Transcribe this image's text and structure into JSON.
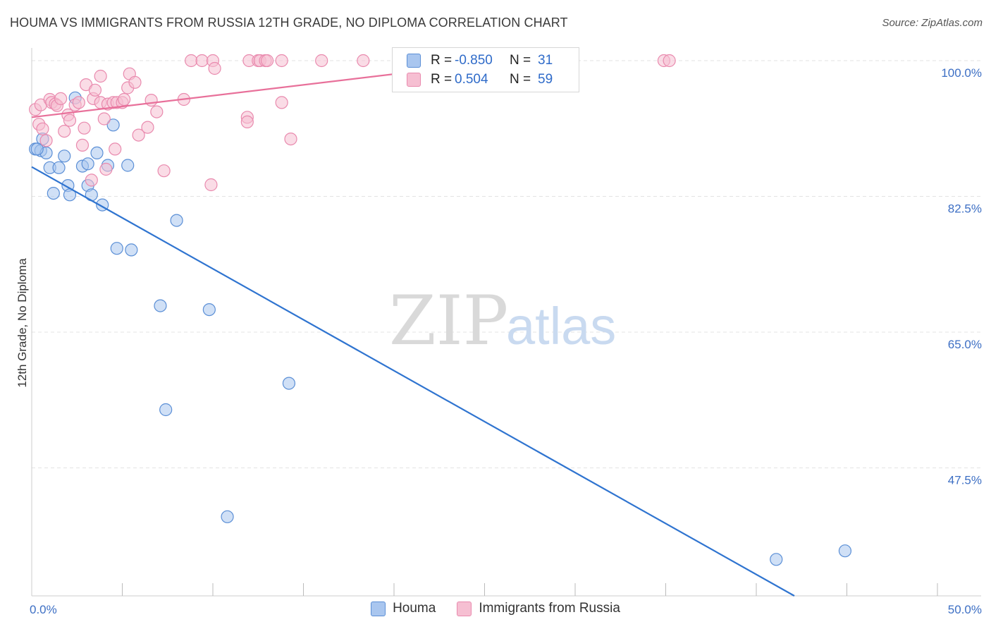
{
  "header": {
    "title": "HOUMA VS IMMIGRANTS FROM RUSSIA 12TH GRADE, NO DIPLOMA CORRELATION CHART",
    "source": "Source: ZipAtlas.com"
  },
  "watermark": {
    "zip": "ZIP",
    "atlas": "atlas"
  },
  "colors": {
    "houma_fill": "#a9c6ef",
    "houma_stroke": "#5b8fd6",
    "houma_line": "#2f74d0",
    "russia_fill": "#f6bfd2",
    "russia_stroke": "#e98aae",
    "russia_line": "#e8709a",
    "tick_text": "#3d6fc4",
    "grid": "#e3e3e3"
  },
  "legend": {
    "rows": [
      {
        "r_label": "R =",
        "r_value": "-0.850",
        "n_label": "N =",
        "n_value": "31"
      },
      {
        "r_label": "R =",
        "r_value": "0.504",
        "n_label": "N =",
        "n_value": "59"
      }
    ]
  },
  "bottom_legend": {
    "houma": "Houma",
    "russia": "Immigrants from Russia"
  },
  "chart_data": {
    "type": "scatter",
    "title": "HOUMA VS IMMIGRANTS FROM RUSSIA 12TH GRADE, NO DIPLOMA CORRELATION CHART",
    "xlabel": "",
    "ylabel": "12th Grade, No Diploma",
    "xlim": [
      0,
      50
    ],
    "ylim": [
      31,
      101
    ],
    "x_tick_labels": [
      {
        "value": 0,
        "label": "0.0%"
      },
      {
        "value": 50,
        "label": "50.0%"
      }
    ],
    "x_minor_ticks": [
      5,
      10,
      15,
      20,
      25,
      30,
      35,
      40,
      45,
      50
    ],
    "y_ticks": [
      {
        "value": 100,
        "label": "100.0%"
      },
      {
        "value": 82.5,
        "label": "82.5%"
      },
      {
        "value": 65,
        "label": "65.0%"
      },
      {
        "value": 47.5,
        "label": "47.5%"
      }
    ],
    "grid": true,
    "legend_position": "top-center",
    "series": [
      {
        "name": "Houma",
        "r": -0.85,
        "n": 31,
        "trend": {
          "x": [
            0,
            42.1
          ],
          "y": [
            86.3,
            31
          ]
        },
        "points": [
          [
            0.2,
            88.6
          ],
          [
            0.5,
            88.4
          ],
          [
            0.6,
            89.9
          ],
          [
            0.8,
            88.1
          ],
          [
            1.0,
            86.2
          ],
          [
            1.2,
            82.9
          ],
          [
            1.5,
            86.2
          ],
          [
            1.8,
            87.7
          ],
          [
            2.0,
            83.9
          ],
          [
            2.1,
            82.7
          ],
          [
            2.4,
            95.2
          ],
          [
            2.8,
            86.4
          ],
          [
            3.1,
            83.9
          ],
          [
            3.1,
            86.7
          ],
          [
            3.3,
            82.7
          ],
          [
            3.6,
            88.1
          ],
          [
            3.9,
            81.4
          ],
          [
            4.2,
            86.5
          ],
          [
            4.5,
            91.7
          ],
          [
            4.7,
            75.8
          ],
          [
            5.3,
            86.5
          ],
          [
            5.5,
            75.6
          ],
          [
            7.1,
            68.4
          ],
          [
            7.4,
            55.0
          ],
          [
            8.0,
            79.4
          ],
          [
            9.8,
            67.9
          ],
          [
            10.8,
            41.2
          ],
          [
            14.2,
            58.4
          ],
          [
            41.1,
            35.7
          ],
          [
            44.9,
            36.8
          ],
          [
            0.3,
            88.6
          ]
        ]
      },
      {
        "name": "Immigrants from Russia",
        "r": 0.504,
        "n": 59,
        "trend": {
          "x": [
            0,
            28.0
          ],
          "y": [
            92.7,
            100.5
          ]
        },
        "points": [
          [
            0.2,
            93.7
          ],
          [
            0.4,
            91.8
          ],
          [
            0.5,
            94.3
          ],
          [
            0.6,
            91.2
          ],
          [
            0.8,
            89.7
          ],
          [
            1.0,
            95.0
          ],
          [
            1.1,
            94.6
          ],
          [
            1.3,
            94.4
          ],
          [
            1.4,
            94.2
          ],
          [
            1.6,
            95.1
          ],
          [
            1.8,
            90.9
          ],
          [
            2.0,
            93.0
          ],
          [
            2.1,
            92.3
          ],
          [
            2.4,
            94.3
          ],
          [
            2.6,
            94.6
          ],
          [
            2.8,
            89.1
          ],
          [
            2.9,
            91.3
          ],
          [
            3.0,
            96.9
          ],
          [
            3.3,
            84.6
          ],
          [
            3.4,
            95.1
          ],
          [
            3.5,
            96.2
          ],
          [
            3.8,
            94.6
          ],
          [
            3.8,
            98.0
          ],
          [
            4.0,
            92.5
          ],
          [
            4.1,
            86.0
          ],
          [
            4.2,
            94.4
          ],
          [
            4.5,
            94.6
          ],
          [
            4.6,
            88.6
          ],
          [
            4.7,
            94.6
          ],
          [
            5.0,
            94.6
          ],
          [
            5.1,
            95.0
          ],
          [
            5.3,
            96.5
          ],
          [
            5.4,
            98.3
          ],
          [
            5.7,
            97.2
          ],
          [
            5.9,
            90.4
          ],
          [
            6.4,
            91.4
          ],
          [
            6.6,
            94.9
          ],
          [
            6.9,
            93.4
          ],
          [
            7.3,
            85.8
          ],
          [
            8.4,
            95.0
          ],
          [
            8.8,
            100.0
          ],
          [
            9.4,
            100.0
          ],
          [
            9.9,
            84.0
          ],
          [
            10.0,
            100.0
          ],
          [
            10.1,
            99.0
          ],
          [
            11.9,
            92.7
          ],
          [
            11.9,
            92.1
          ],
          [
            12.0,
            100.0
          ],
          [
            12.5,
            100.0
          ],
          [
            12.6,
            100.0
          ],
          [
            12.9,
            100.0
          ],
          [
            13.0,
            100.0
          ],
          [
            13.8,
            94.6
          ],
          [
            13.8,
            100.0
          ],
          [
            14.3,
            89.9
          ],
          [
            16.0,
            100.0
          ],
          [
            18.3,
            100.0
          ],
          [
            34.9,
            100.0
          ],
          [
            35.2,
            100.0
          ]
        ]
      }
    ]
  }
}
